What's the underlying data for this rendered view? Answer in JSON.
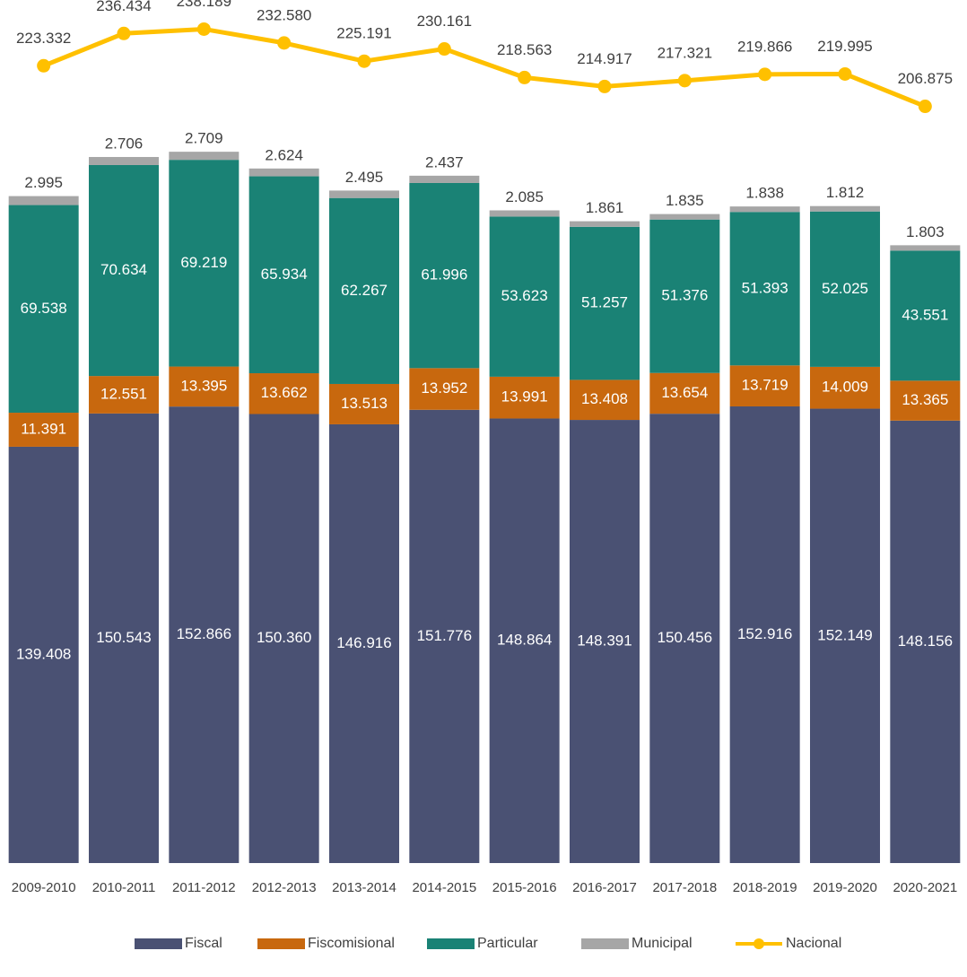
{
  "chart_data": {
    "type": "bar",
    "stacked": true,
    "categories": [
      "2009-2010",
      "2010-2011",
      "2011-2012",
      "2012-2013",
      "2013-2014",
      "2014-2015",
      "2015-2016",
      "2016-2017",
      "2017-2018",
      "2018-2019",
      "2019-2020",
      "2020-2021"
    ],
    "ylim": [
      0,
      289000
    ],
    "y2lim": [
      -100000,
      250000
    ],
    "series": [
      {
        "name": "Fiscal",
        "color": "#4a5173",
        "label_color": "#ffffff",
        "values": [
          139408,
          150543,
          152866,
          150360,
          146916,
          151776,
          148864,
          148391,
          150456,
          152916,
          152149,
          148156
        ],
        "value_labels": [
          "139.408",
          "150.543",
          "152.866",
          "150.360",
          "146.916",
          "151.776",
          "148.864",
          "148.391",
          "150.456",
          "152.916",
          "152.149",
          "148.156"
        ]
      },
      {
        "name": "Fiscomisional",
        "color": "#c8680e",
        "label_color": "#ffffff",
        "values": [
          11391,
          12551,
          13395,
          13662,
          13513,
          13952,
          13991,
          13408,
          13654,
          13719,
          14009,
          13365
        ],
        "value_labels": [
          "11.391",
          "12.551",
          "13.395",
          "13.662",
          "13.513",
          "13.952",
          "13.991",
          "13.408",
          "13.654",
          "13.719",
          "14.009",
          "13.365"
        ]
      },
      {
        "name": "Particular",
        "color": "#1a8275",
        "label_color": "#ffffff",
        "values": [
          69538,
          70634,
          69219,
          65934,
          62267,
          61996,
          53623,
          51257,
          51376,
          51393,
          52025,
          43551
        ],
        "value_labels": [
          "69.538",
          "70.634",
          "69.219",
          "65.934",
          "62.267",
          "61.996",
          "53.623",
          "51.257",
          "51.376",
          "51.393",
          "52.025",
          "43.551"
        ]
      },
      {
        "name": "Municipal",
        "color": "#a6a6a6",
        "label_color": "#404040",
        "values": [
          2995,
          2706,
          2709,
          2624,
          2495,
          2437,
          2085,
          1861,
          1835,
          1838,
          1812,
          1803
        ],
        "value_labels": [
          "2.995",
          "2.706",
          "2.709",
          "2.624",
          "2.495",
          "2.437",
          "2.085",
          "1.861",
          "1.835",
          "1.838",
          "1.812",
          "1.803"
        ]
      },
      {
        "name": "Nacional",
        "type": "line",
        "axis": "y2",
        "color": "#ffc000",
        "label_color": "#404040",
        "values": [
          223332,
          236434,
          238189,
          232580,
          225191,
          230161,
          218563,
          214917,
          217321,
          219866,
          219995,
          206875
        ],
        "value_labels": [
          "223.332",
          "236.434",
          "238.189",
          "232.580",
          "225.191",
          "230.161",
          "218.563",
          "214.917",
          "217.321",
          "219.866",
          "219.995",
          "206.875"
        ]
      }
    ]
  }
}
